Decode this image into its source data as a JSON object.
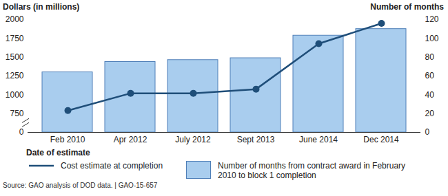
{
  "chart_data": {
    "type": "bar",
    "categories": [
      "Feb 2010",
      "Apr 2012",
      "July 2012",
      "Sept 2013",
      "June 2014",
      "Dec 2014"
    ],
    "xlabel": "Date of estimate",
    "ylabel": "Dollars (in millions)",
    "y2label": "Number of months",
    "ylim": [
      0,
      2000
    ],
    "yticks": [
      0,
      750,
      1000,
      1250,
      1500,
      1750,
      2000
    ],
    "y2lim": [
      0,
      120
    ],
    "y2ticks": [
      0,
      20,
      40,
      60,
      80,
      100,
      120
    ],
    "series": [
      {
        "name": "Cost estimate at completion",
        "type": "line",
        "color": "#1f4e79",
        "marker": "circle",
        "values": [
          790,
          1020,
          1020,
          1075,
          1680,
          1950
        ]
      },
      {
        "name": "Number of months from contract award in February 2010 to block 1 completion",
        "type": "bar",
        "axis": "y2",
        "color": "#a9cdee",
        "values": [
          64,
          75,
          77,
          79,
          103,
          110
        ]
      }
    ],
    "legend": "bottom",
    "source": "Source: GAO analysis of DOD data.  |  GAO-15-657"
  }
}
